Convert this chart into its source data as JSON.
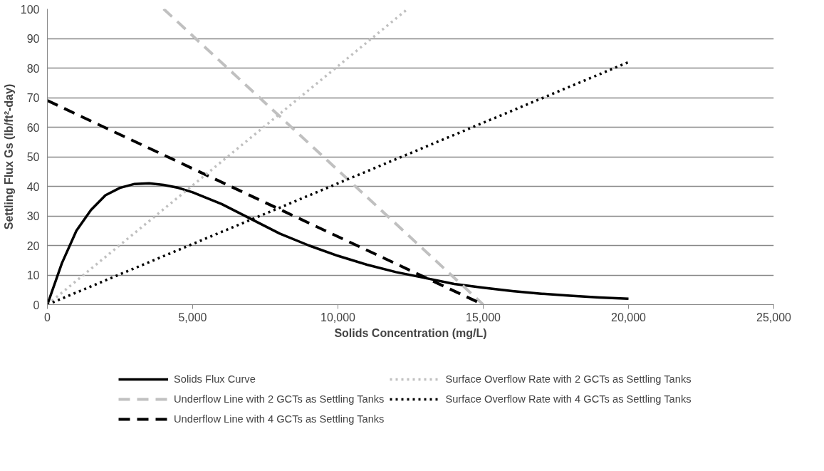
{
  "chart_data": {
    "type": "line",
    "xlabel": "Solids Concentration (mg/L)",
    "ylabel": "Settling Flux Gs (lb/ft²-day)",
    "xlim": [
      0,
      25000
    ],
    "xticks": [
      {
        "value": 0,
        "label": "0"
      },
      {
        "value": 5000,
        "label": "5,000"
      },
      {
        "value": 10000,
        "label": "10,000"
      },
      {
        "value": 15000,
        "label": "15,000"
      },
      {
        "value": 20000,
        "label": "20,000"
      },
      {
        "value": 25000,
        "label": "25,000"
      }
    ],
    "ylim": [
      0,
      100
    ],
    "yticks": [
      0,
      10,
      20,
      30,
      40,
      50,
      60,
      70,
      80,
      90,
      100
    ],
    "grid": "y",
    "legend": "bottom",
    "marker": "none",
    "series": [
      {
        "name": "Solids Flux Curve",
        "color": "#000000",
        "line_style": "solid",
        "x": [
          0,
          500,
          1000,
          1500,
          2000,
          2500,
          3000,
          3500,
          4000,
          4500,
          5000,
          6000,
          7000,
          8000,
          9000,
          10000,
          11000,
          12000,
          13000,
          14000,
          15000,
          16000,
          17000,
          18000,
          19000,
          20000
        ],
        "values": [
          0,
          14,
          25,
          32,
          37,
          39.5,
          40.8,
          41,
          40.5,
          39.5,
          38,
          34,
          29,
          24,
          20,
          16.5,
          13.5,
          11,
          9,
          7,
          5.7,
          4.6,
          3.7,
          3,
          2.4,
          2
        ]
      },
      {
        "name": "Underflow Line with 2 GCTs as Settling Tanks",
        "color": "#c0c0c0",
        "line_style": "dashed",
        "x": [
          4000,
          15000
        ],
        "values": [
          100,
          0
        ]
      },
      {
        "name": "Underflow Line with 4 GCTs as Settling Tanks",
        "color": "#000000",
        "line_style": "dashed",
        "x": [
          0,
          15000
        ],
        "values": [
          69,
          0
        ]
      },
      {
        "name": "Surface Overflow Rate with 2 GCTs as Settling Tanks",
        "color": "#c0c0c0",
        "line_style": "dotted",
        "x": [
          0,
          12400
        ],
        "values": [
          0,
          100
        ]
      },
      {
        "name": "Surface Overflow Rate with 4 GCTs as Settling Tanks",
        "color": "#000000",
        "line_style": "dotted",
        "x": [
          0,
          20000
        ],
        "values": [
          0,
          82
        ]
      }
    ]
  }
}
